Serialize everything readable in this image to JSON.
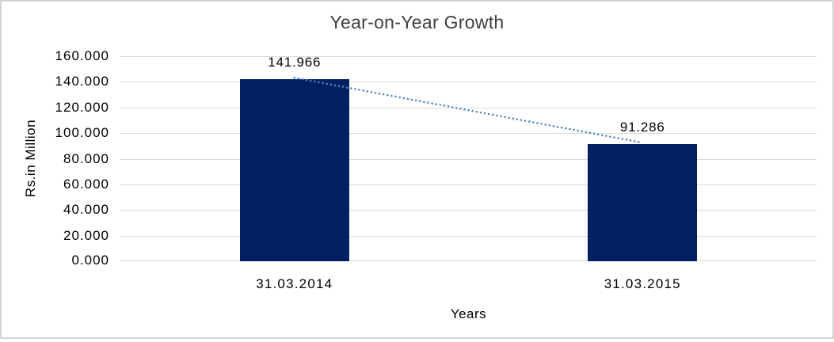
{
  "chart_data": {
    "type": "bar",
    "title": "Year-on-Year Growth",
    "categories": [
      "31.03.2014",
      "31.03.2015"
    ],
    "values": [
      141.966,
      91.286
    ],
    "data_labels": [
      "141.966",
      "91.286"
    ],
    "xlabel": "Years",
    "ylabel": "Rs.in Million",
    "ylim": [
      0,
      160
    ],
    "ytick_step": 20,
    "ytick_labels": [
      "160.000",
      "140.000",
      "120.000",
      "100.000",
      "80.000",
      "60.000",
      "40.000",
      "20.000",
      "0.000"
    ],
    "grid": true,
    "legend": "none",
    "bar_color": "#002060",
    "gridline_color": "#D9D9D9",
    "chart_border_color": "#D3D3D3",
    "background_color": "#FFFFFF",
    "trendline": {
      "type": "linear",
      "style": "dotted",
      "color": "#4A86C8"
    }
  }
}
